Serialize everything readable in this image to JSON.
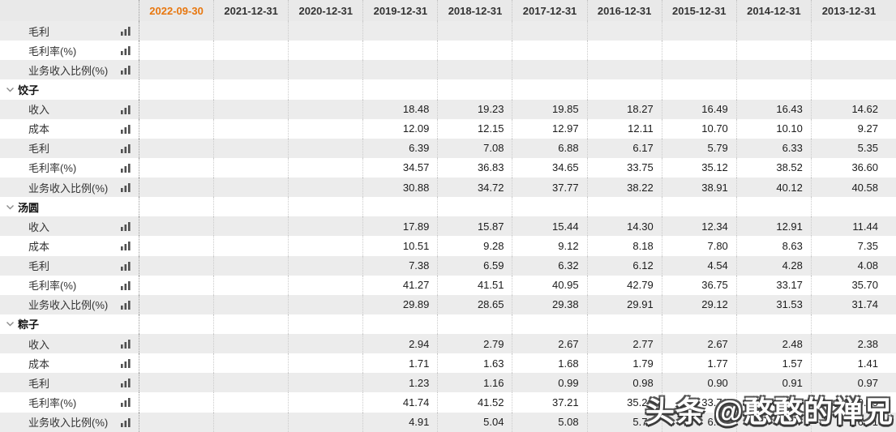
{
  "colors": {
    "accent_orange": "#e8770f",
    "stripe_gray": "#ececec",
    "header_gray": "#e9e9e9",
    "column_separator": "#cbcbcb",
    "sidebar_separator": "#9a9a9a",
    "watermark_fill": "#ffffff",
    "watermark_outline": "#3c3c3c"
  },
  "watermark": {
    "text": "头条 @憨憨的禅兄"
  },
  "table": {
    "corner_label": "",
    "columns": [
      "2022-09-30",
      "2021-12-31",
      "2020-12-31",
      "2019-12-31",
      "2018-12-31",
      "2017-12-31",
      "2016-12-31",
      "2015-12-31",
      "2014-12-31",
      "2013-12-31"
    ],
    "highlight_column": "2022-09-30",
    "icons": {
      "metric_icon": "bar-chart-icon",
      "group_icon": "chevron-down-icon"
    },
    "rows": [
      {
        "type": "metric",
        "label": "毛利",
        "values": [
          "",
          "",
          "",
          "",
          "",
          "",
          "",
          "",
          "",
          ""
        ]
      },
      {
        "type": "metric",
        "label": "毛利率(%)",
        "values": [
          "",
          "",
          "",
          "",
          "",
          "",
          "",
          "",
          "",
          ""
        ]
      },
      {
        "type": "metric",
        "label": "业务收入比例(%)",
        "values": [
          "",
          "",
          "",
          "",
          "",
          "",
          "",
          "",
          "",
          ""
        ]
      },
      {
        "type": "group",
        "label": "饺子",
        "values": [
          "",
          "",
          "",
          "",
          "",
          "",
          "",
          "",
          "",
          ""
        ]
      },
      {
        "type": "metric",
        "label": "收入",
        "values": [
          "",
          "",
          "",
          "18.48",
          "19.23",
          "19.85",
          "18.27",
          "16.49",
          "16.43",
          "14.62"
        ]
      },
      {
        "type": "metric",
        "label": "成本",
        "values": [
          "",
          "",
          "",
          "12.09",
          "12.15",
          "12.97",
          "12.11",
          "10.70",
          "10.10",
          "9.27"
        ]
      },
      {
        "type": "metric",
        "label": "毛利",
        "values": [
          "",
          "",
          "",
          "6.39",
          "7.08",
          "6.88",
          "6.17",
          "5.79",
          "6.33",
          "5.35"
        ]
      },
      {
        "type": "metric",
        "label": "毛利率(%)",
        "values": [
          "",
          "",
          "",
          "34.57",
          "36.83",
          "34.65",
          "33.75",
          "35.12",
          "38.52",
          "36.60"
        ]
      },
      {
        "type": "metric",
        "label": "业务收入比例(%)",
        "values": [
          "",
          "",
          "",
          "30.88",
          "34.72",
          "37.77",
          "38.22",
          "38.91",
          "40.12",
          "40.58"
        ]
      },
      {
        "type": "group",
        "label": "汤圆",
        "values": [
          "",
          "",
          "",
          "",
          "",
          "",
          "",
          "",
          "",
          ""
        ]
      },
      {
        "type": "metric",
        "label": "收入",
        "values": [
          "",
          "",
          "",
          "17.89",
          "15.87",
          "15.44",
          "14.30",
          "12.34",
          "12.91",
          "11.44"
        ]
      },
      {
        "type": "metric",
        "label": "成本",
        "values": [
          "",
          "",
          "",
          "10.51",
          "9.28",
          "9.12",
          "8.18",
          "7.80",
          "8.63",
          "7.35"
        ]
      },
      {
        "type": "metric",
        "label": "毛利",
        "values": [
          "",
          "",
          "",
          "7.38",
          "6.59",
          "6.32",
          "6.12",
          "4.54",
          "4.28",
          "4.08"
        ]
      },
      {
        "type": "metric",
        "label": "毛利率(%)",
        "values": [
          "",
          "",
          "",
          "41.27",
          "41.51",
          "40.95",
          "42.79",
          "36.75",
          "33.17",
          "35.70"
        ]
      },
      {
        "type": "metric",
        "label": "业务收入比例(%)",
        "values": [
          "",
          "",
          "",
          "29.89",
          "28.65",
          "29.38",
          "29.91",
          "29.12",
          "31.53",
          "31.74"
        ]
      },
      {
        "type": "group",
        "label": "粽子",
        "values": [
          "",
          "",
          "",
          "",
          "",
          "",
          "",
          "",
          "",
          ""
        ]
      },
      {
        "type": "metric",
        "label": "收入",
        "values": [
          "",
          "",
          "",
          "2.94",
          "2.79",
          "2.67",
          "2.77",
          "2.67",
          "2.48",
          "2.38"
        ]
      },
      {
        "type": "metric",
        "label": "成本",
        "values": [
          "",
          "",
          "",
          "1.71",
          "1.63",
          "1.68",
          "1.79",
          "1.77",
          "1.57",
          "1.41"
        ]
      },
      {
        "type": "metric",
        "label": "毛利",
        "values": [
          "",
          "",
          "",
          "1.23",
          "1.16",
          "0.99",
          "0.98",
          "0.90",
          "0.91",
          "0.97"
        ]
      },
      {
        "type": "metric",
        "label": "毛利率(%)",
        "values": [
          "",
          "",
          "",
          "41.74",
          "41.52",
          "37.21",
          "35.26",
          "33.71",
          "36.68",
          "40.75"
        ]
      },
      {
        "type": "metric",
        "label": "业务收入比例(%)",
        "values": [
          "",
          "",
          "",
          "4.91",
          "5.04",
          "5.08",
          "5.79",
          "6.30",
          "6.07",
          "6.61"
        ]
      }
    ]
  }
}
